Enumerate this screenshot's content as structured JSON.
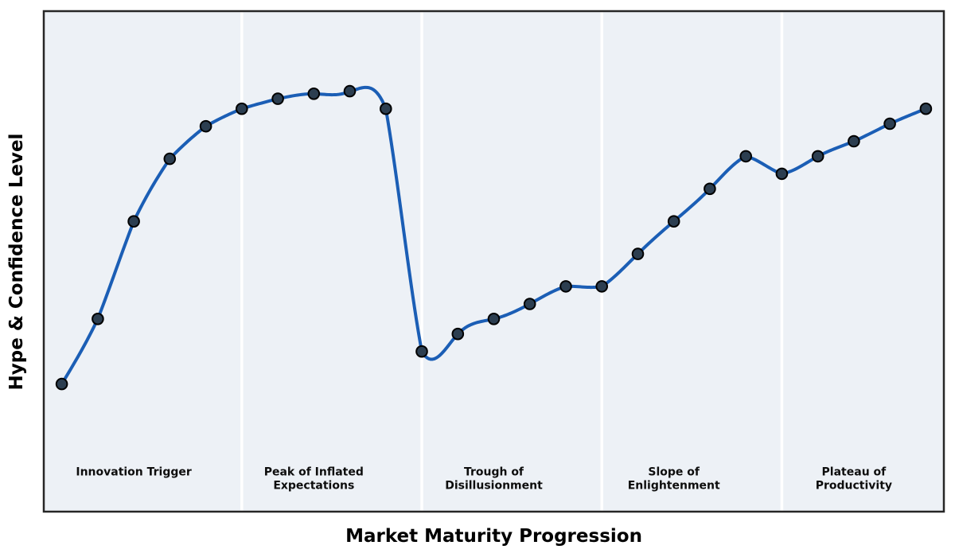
{
  "chart_data": {
    "type": "line",
    "title": "",
    "xlabel": "Market Maturity Progression",
    "ylabel": "Hype & Confidence Level",
    "x": [
      0,
      1,
      2,
      3,
      4,
      5,
      6,
      7,
      8,
      9,
      10,
      11,
      12,
      13,
      14,
      15,
      16,
      17,
      18,
      19,
      20,
      21,
      22,
      23,
      24
    ],
    "y": [
      25.5,
      38.5,
      58,
      70.5,
      77,
      80.5,
      82.5,
      83.5,
      84,
      80.5,
      32,
      35.5,
      38.5,
      41.5,
      45,
      45,
      51.5,
      58,
      64.5,
      71,
      67.5,
      71,
      74,
      77.5,
      80.5
    ],
    "xlim": [
      -0.5,
      24.5
    ],
    "ylim": [
      0,
      100
    ],
    "grid": false,
    "legend": "none",
    "smoothing": "cubic-spline",
    "phase_dividers_x": [
      5,
      10,
      15,
      20
    ],
    "phase_label_y": 8,
    "phases": [
      {
        "label": "Innovation Trigger",
        "x_center": 2
      },
      {
        "label": "Peak of Inflated\nExpectations",
        "x_center": 7
      },
      {
        "label": "Trough of\nDisillusionment",
        "x_center": 12
      },
      {
        "label": "Slope of\nEnlightenment",
        "x_center": 17
      },
      {
        "label": "Plateau of\nProductivity",
        "x_center": 22
      }
    ],
    "colors": {
      "line": "#1b5eb5",
      "marker_fill": "#2c3e50",
      "marker_edge": "#000000",
      "plot_background": "#edf1f6",
      "divider": "#ffffff",
      "border": "#262626",
      "phase_label_text": "#0d0d0d",
      "figure_background": "#ffffff"
    }
  }
}
